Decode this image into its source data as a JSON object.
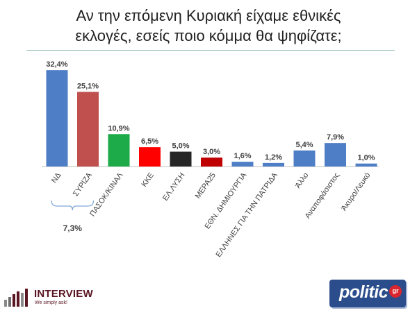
{
  "title_line1": "Αν την επόμενη Κυριακή είχαμε εθνικές",
  "title_line2": "εκλογές, εσείς ποιο κόμμα θα ψηφίζατε;",
  "bracket_label": "7,3%",
  "logos": {
    "left_name": "INTERVIEW",
    "left_tagline": "We simply ask!",
    "right_name": "politic",
    "right_suffix": "gr"
  },
  "colors": {
    "blue": "#4e7fc6",
    "red_syriza": "#c0504d",
    "green": "#1daa48",
    "red_kke": "#ff0000",
    "black": "#262626",
    "dark_red": "#c00000"
  },
  "chart_data": {
    "type": "bar",
    "title": "Αν την επόμενη Κυριακή είχαμε εθνικές εκλογές, εσείς ποιο κόμμα θα ψηφίζατε;",
    "categories": [
      "ΝΔ",
      "ΣΥΡΙΖΑ",
      "ΠΑΣΟΚ/ΚΙΝΑΛ",
      "ΚΚΕ",
      "ΕΛ.ΛΥΣΗ",
      "ΜΕΡΑ25",
      "ΕΘΝ. ΔΗΜΙΟΥΡΓΙΑ",
      "ΕΛΛΗΝΕΣ ΓΙΑ ΤΗΝ ΠΑΤΡΙΔΑ",
      "Άλλο",
      "Αναποφάσιστος",
      "Άκυρο/Λευκό"
    ],
    "values": [
      32.4,
      25.1,
      10.9,
      6.5,
      5.0,
      3.0,
      1.6,
      1.2,
      5.4,
      7.9,
      1.0
    ],
    "value_labels": [
      "32,4%",
      "25,1%",
      "10,9%",
      "6,5%",
      "5,0%",
      "3,0%",
      "1,6%",
      "1,2%",
      "5,4%",
      "7,9%",
      "1,0%"
    ],
    "bar_colors": [
      "#4e7fc6",
      "#c0504d",
      "#1daa48",
      "#ff0000",
      "#262626",
      "#c00000",
      "#4e7fc6",
      "#4e7fc6",
      "#4e7fc6",
      "#4e7fc6",
      "#4e7fc6"
    ],
    "ylim": [
      0,
      35
    ],
    "xlabel": "",
    "ylabel": "",
    "grid": false,
    "legend": "none",
    "annotations": [
      {
        "text": "7,3%",
        "spans": [
          "ΝΔ",
          "ΣΥΡΙΖΑ"
        ],
        "meaning": "gap between first two parties"
      }
    ]
  }
}
